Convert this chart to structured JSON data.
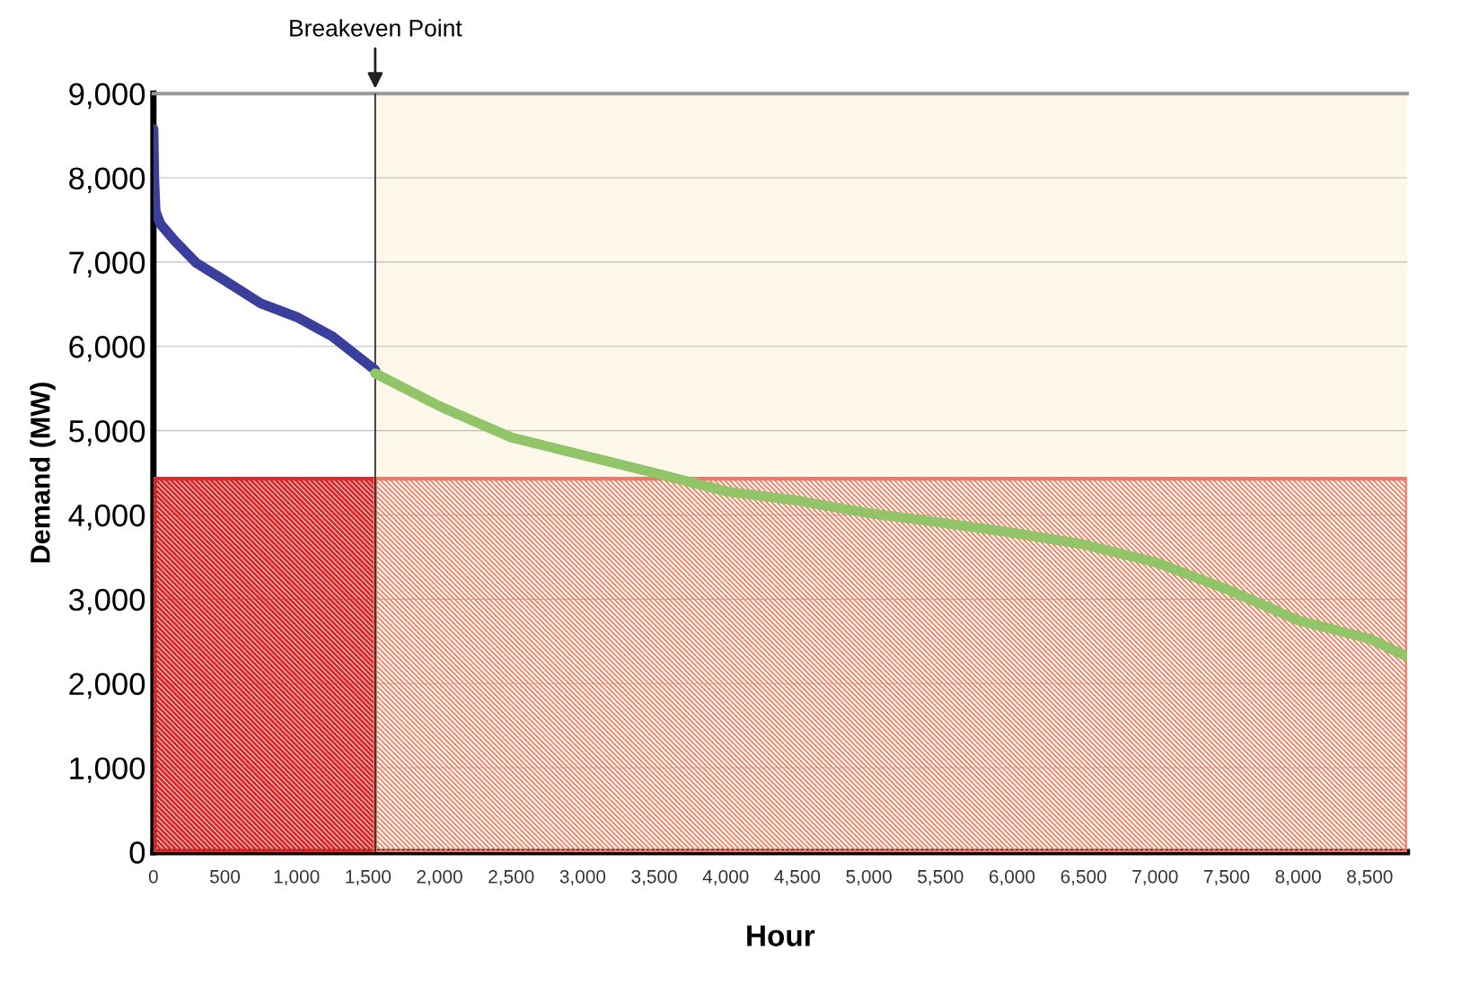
{
  "chart_data": {
    "type": "line",
    "xlabel": "Hour",
    "ylabel": "Demand (MW)",
    "series": [
      {
        "type": "area",
        "color": "#d92b2b",
        "x": [
          0,
          1550
        ],
        "values": [
          4430,
          4430
        ]
      },
      {
        "type": "area",
        "color": "#f07868",
        "x": [
          1550,
          8760
        ],
        "values": [
          4430,
          4430
        ]
      },
      {
        "color": "#3a3f9e",
        "x": [
          0,
          5,
          15,
          50,
          150,
          300,
          500,
          750,
          1000,
          1250,
          1550
        ],
        "values": [
          8580,
          8000,
          7600,
          7450,
          7250,
          6990,
          6780,
          6510,
          6350,
          6120,
          5720
        ]
      },
      {
        "color": "#92c46a",
        "x": [
          1550,
          2000,
          2500,
          3000,
          3500,
          4000,
          4500,
          5000,
          5500,
          6000,
          6500,
          7000,
          7500,
          8000,
          8500,
          8760
        ],
        "values": [
          5680,
          5290,
          4920,
          4710,
          4500,
          4280,
          4170,
          4020,
          3910,
          3790,
          3650,
          3440,
          3120,
          2750,
          2530,
          2320
        ]
      }
    ],
    "bands": [
      {
        "axis": "x",
        "from": 1550,
        "to": 8760,
        "color": "#fdf8ea"
      }
    ],
    "ref_lines": [
      {
        "axis": "x",
        "value": 1550,
        "color": "#222222"
      }
    ],
    "annotations": [
      {
        "text": "Breakeven Point",
        "x": 1550,
        "y": 9000
      }
    ],
    "xlim": [
      0,
      8760
    ],
    "ylim": [
      0,
      9000
    ],
    "xticks": [
      0,
      500,
      {
        "value": 1000,
        "label": "1,000"
      },
      {
        "value": 1500,
        "label": "1,500"
      },
      {
        "value": 2000,
        "label": "2,000"
      },
      {
        "value": 2500,
        "label": "2,500"
      },
      {
        "value": 3000,
        "label": "3,000"
      },
      {
        "value": 3500,
        "label": "3,500"
      },
      {
        "value": 4000,
        "label": "4,000"
      },
      {
        "value": 4500,
        "label": "4,500"
      },
      {
        "value": 5000,
        "label": "5,000"
      },
      {
        "value": 5500,
        "label": "5,500"
      },
      {
        "value": 6000,
        "label": "6,000"
      },
      {
        "value": 6500,
        "label": "6,500"
      },
      {
        "value": 7000,
        "label": "7,000"
      },
      {
        "value": 7500,
        "label": "7,500"
      },
      {
        "value": 8000,
        "label": "8,000"
      },
      {
        "value": 8500,
        "label": "8,500"
      }
    ],
    "yticks": [
      0,
      {
        "value": 1000,
        "label": "1,000"
      },
      {
        "value": 2000,
        "label": "2,000"
      },
      {
        "value": 3000,
        "label": "3,000"
      },
      {
        "value": 4000,
        "label": "4,000"
      },
      {
        "value": 5000,
        "label": "5,000"
      },
      {
        "value": 6000,
        "label": "6,000"
      },
      {
        "value": 7000,
        "label": "7,000"
      },
      {
        "value": 8000,
        "label": "8,000"
      },
      {
        "value": 9000,
        "label": "9,000"
      }
    ],
    "grid": "y",
    "legend": false,
    "marker": "none",
    "line_style": "solid"
  }
}
